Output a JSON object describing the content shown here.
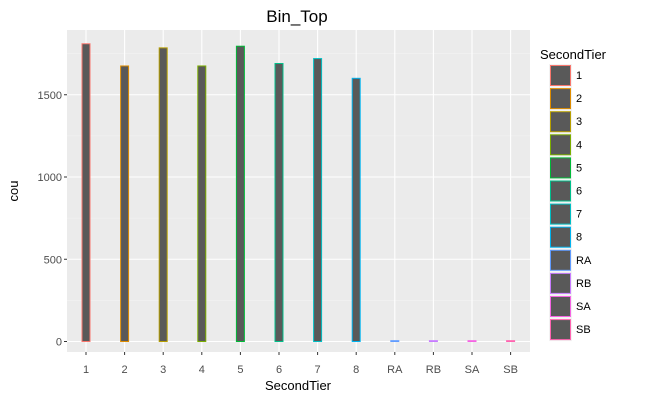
{
  "chart_data": {
    "type": "bar",
    "title": "Bin_Top",
    "xlabel": "SecondTier",
    "ylabel": "cou",
    "categories": [
      "1",
      "2",
      "3",
      "4",
      "5",
      "6",
      "7",
      "8",
      "RA",
      "RB",
      "SA",
      "SB"
    ],
    "values": [
      1810,
      1675,
      1785,
      1675,
      1795,
      1690,
      1720,
      1600,
      5,
      5,
      5,
      5
    ],
    "ylim": [
      0,
      1870
    ],
    "yticks": [
      0,
      500,
      1000,
      1500
    ],
    "bar_fill": "#595959",
    "colors": [
      "#F8766D",
      "#DE8C00",
      "#B79F00",
      "#7CAE00",
      "#00BA38",
      "#00C08B",
      "#00BFC4",
      "#00B4F0",
      "#619CFF",
      "#C77CFF",
      "#F564E3",
      "#FF64B0"
    ],
    "grid": true,
    "legend": {
      "title": "SecondTier",
      "position": "right",
      "entries": [
        "1",
        "2",
        "3",
        "4",
        "5",
        "6",
        "7",
        "8",
        "RA",
        "RB",
        "SA",
        "SB"
      ]
    }
  }
}
